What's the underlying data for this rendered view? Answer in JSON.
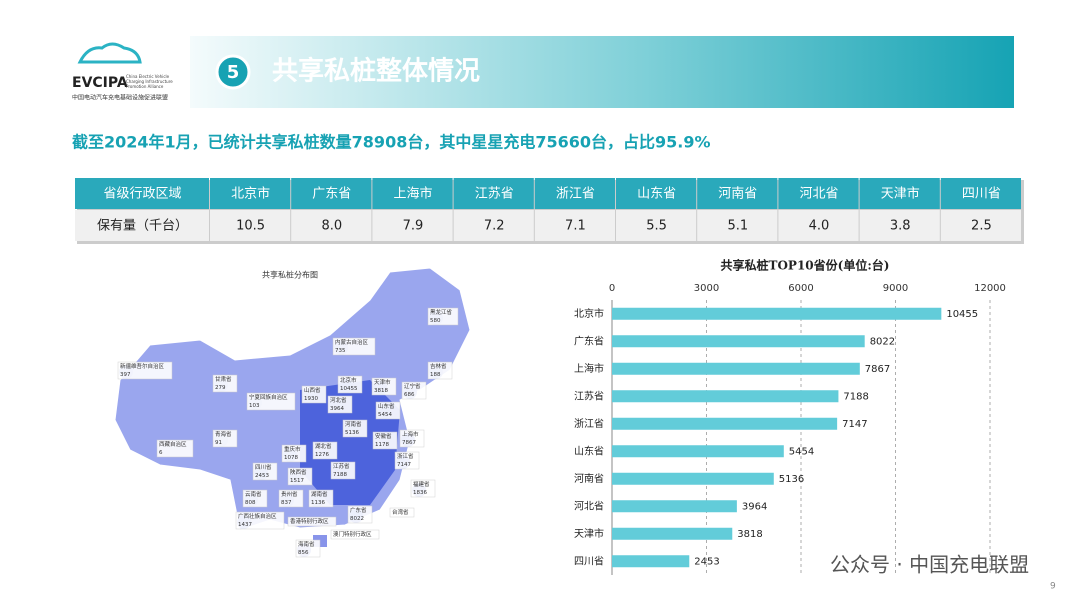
{
  "header": {
    "logo": "EVCIPA",
    "logo_en": "China Electric Vehicle Charging Infrastructure Promotion Alliance",
    "logo_cn": "中国电动汽车充电基础设施促进联盟",
    "number": "5",
    "title": "共享私桩整体情况"
  },
  "subtitle": "截至2024年1月，已统计共享私桩数量78908台，其中星星充电75660台，占比95.9%",
  "table": {
    "rows": [
      [
        "省级行政区域",
        "北京市",
        "广东省",
        "上海市",
        "江苏省",
        "浙江省",
        "山东省",
        "河南省",
        "河北省",
        "天津市",
        "四川省"
      ],
      [
        "保有量（千台）",
        "10.5",
        "8.0",
        "7.9",
        "7.2",
        "7.1",
        "5.5",
        "5.1",
        "4.0",
        "3.8",
        "2.5"
      ]
    ]
  },
  "map": {
    "title": "共享私桩分布图",
    "regions": [
      {
        "name": "黑龙江省",
        "value": 580
      },
      {
        "name": "吉林省",
        "value": 188
      },
      {
        "name": "辽宁省",
        "value": 686
      },
      {
        "name": "内蒙古自治区",
        "value": 735
      },
      {
        "name": "新疆维吾尔自治区",
        "value": 397
      },
      {
        "name": "甘肃省",
        "value": 279
      },
      {
        "name": "宁夏回族自治区",
        "value": 103
      },
      {
        "name": "山西省",
        "value": 1930
      },
      {
        "name": "北京市",
        "value": 10455
      },
      {
        "name": "天津市",
        "value": 3818
      },
      {
        "name": "河北省",
        "value": 3964
      },
      {
        "name": "山东省",
        "value": 5454
      },
      {
        "name": "青海省",
        "value": 91
      },
      {
        "name": "西藏自治区",
        "value": 6
      },
      {
        "name": "陕西省",
        "value": 1517
      },
      {
        "name": "河南省",
        "value": 5136
      },
      {
        "name": "安徽省",
        "value": 1178
      },
      {
        "name": "上海市",
        "value": 7867
      },
      {
        "name": "江苏省",
        "value": 7188
      },
      {
        "name": "浙江省",
        "value": 7147
      },
      {
        "name": "湖北省",
        "value": 1276
      },
      {
        "name": "重庆市",
        "value": 1078
      },
      {
        "name": "四川省",
        "value": 2453
      },
      {
        "name": "贵州省",
        "value": 837
      },
      {
        "name": "湖南省",
        "value": 1136
      },
      {
        "name": "云南省",
        "value": 808
      },
      {
        "name": "广西壮族自治区",
        "value": 1437
      },
      {
        "name": "广东省",
        "value": 8022
      },
      {
        "name": "福建省",
        "value": 1836
      },
      {
        "name": "海南省",
        "value": 856
      },
      {
        "name": "香港特别行政区",
        "value": null
      },
      {
        "name": "澳门特别行政区",
        "value": null
      },
      {
        "name": "台湾省",
        "value": null
      }
    ]
  },
  "chart_data": {
    "type": "bar",
    "orientation": "horizontal",
    "title": "共享私桩TOP10省份(单位:台)",
    "categories": [
      "北京市",
      "广东省",
      "上海市",
      "江苏省",
      "浙江省",
      "山东省",
      "河南省",
      "河北省",
      "天津市",
      "四川省"
    ],
    "values": [
      10455,
      8022,
      7867,
      7188,
      7147,
      5454,
      5136,
      3964,
      3818,
      2453
    ],
    "color": "#62ccd9",
    "xlim": [
      0,
      12000
    ],
    "xticks": [
      0,
      3000,
      6000,
      9000,
      12000
    ],
    "grid": true
  },
  "footer": {
    "watermark": "公众号 · 中国充电联盟",
    "page": "9"
  }
}
